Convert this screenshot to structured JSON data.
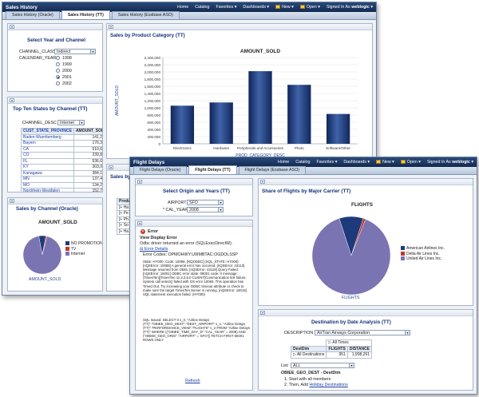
{
  "win1": {
    "app_title": "Sales History",
    "nav": [
      "Home",
      "Catalog",
      "Favorites",
      "Dashboards",
      "New",
      "Open",
      "Signed In As"
    ],
    "user": "weblogic",
    "tabs": [
      "Sales History (Oracle)",
      "Sales History (TT)",
      "Sales History (Essbase ASO)"
    ],
    "select_panel": {
      "title": "Select Year and Channel",
      "channel_class_label": "CHANNEL_CLASS",
      "channel_class_value": "Indirect",
      "calendar_year_label": "CALENDAR_YEAR",
      "years": [
        "1998",
        "1999",
        "2000",
        "2001",
        "2002"
      ],
      "selected_year": "2001"
    },
    "top_states": {
      "title": "Top Ten States by Channel (TT)",
      "channel_desc_label": "CHANNEL_DESC",
      "channel_desc_value": "Internet",
      "columns": [
        "CUST_STATE_PROVINCE",
        "AMOUNT_SOLD"
      ],
      "rows": [
        [
          "Baden-Wuerttemberg",
          "141,204"
        ],
        [
          "Bayern",
          "176,330"
        ],
        [
          "CA",
          "510,665"
        ],
        [
          "CO",
          "239,836"
        ],
        [
          "FL",
          "536,629"
        ],
        [
          "KY",
          "303,089"
        ],
        [
          "Kanagawa",
          "384,122"
        ],
        [
          "MN",
          "137,460"
        ],
        [
          "MO",
          "134,212"
        ],
        [
          "Nordrhein-Westfalen",
          "152,750"
        ]
      ]
    },
    "channel_pie": {
      "title": "Sales by Channel (Oracle)",
      "chart_title": "AMOUNT_SOLD",
      "legend": [
        "NO PROMOTION...",
        "TV",
        "Internet"
      ],
      "legend_colors": [
        "#1f3a7a",
        "#c0392b",
        "#7a74b3"
      ],
      "caption": "AMOUNT_SOLD"
    },
    "category_chart": {
      "title": "Sales by Product Category (TT)",
      "chart_title": "AMOUNT_SOLD",
      "ylabel": "AMOUNT_SOLD",
      "xlabel": "PROD_CATEGORY_DESC",
      "y_ticks": [
        "0",
        "200,000",
        "400,000",
        "600,000",
        "800,000",
        "1,000,000",
        "1,200,000",
        "1,400,000",
        "1,600,000",
        "1,800,000",
        "2,000,000",
        "2,200,000",
        "2,400,000"
      ]
    },
    "sales_by_p": {
      "title": "Sales by P",
      "col": "Product",
      "rows": [
        "[+ Ha",
        "[+ Pe",
        "[+ Ph",
        "[+ So",
        "[+ Ha"
      ]
    }
  },
  "win2": {
    "app_title": "Flight Delays",
    "nav": [
      "Home",
      "Catalog",
      "Favorites",
      "Dashboards",
      "New",
      "Open",
      "Signed In As"
    ],
    "user": "weblogic",
    "tabs": [
      "Flight Delays (Oracle)",
      "Flight Delays (TT)",
      "Flight Delays (Essbase ASO)"
    ],
    "select_panel": {
      "title": "Select Origin and Years (TT)",
      "airport_label": "AIRPORT",
      "airport_value": "SFO",
      "year_label": "* CAL_YEAR",
      "year_value": "2008"
    },
    "error_panel": {
      "heading": "Error",
      "view_display": "View Display Error",
      "summary": "Odbc driver returned an error (SQLExecDirectW).",
      "details_link": "Error Details",
      "codes": "Error Codes: OPMOHWY:U9IMBTAC:OGDOLSSP",
      "state_text": "State: HY000. Code: 10058. [NQODBC] [SQL_STATE: HY000] [nQSError: 10058] A general error has occurred. [nQSError: 43113] Message returned from OBIS. [nQSError: 43119] Query Failed: [nQSError: 16001] ODBC error state: 08001 code: 0 message: [TimesTen][TimesTen 11.2.2.5.0 CLIENT]Communication link failure. System call select() failed with OS error 10060. This operation has Timed Out. Try increasing your ODBC timeout attribute or check to make sure the target TimesTen Server is running. [nQSError: 16015] SQL statement execution failed. (HY000)",
      "sql_text": "SQL Issued: SELECT 0 s_0, \"Airline Delays (TT)\".\"OBIEE_GEO_DEST\".\"DEST_AIRPORT\" s_1, \"Airline Delays (TT)\".\"PERFORMANCE_VIEW\".\"FLIGHTS\" s_2 FROM \"Airline Delays (TT)\" WHERE ((\"OBIEE_TIME_DAY_D\".\"CAL_YEAR\" = 2008) AND (\"OBIEE_GEO_ORIG\".\"AIRPORT\" = 'SFO')) FETCH FIRST 65001 ROWS ONLY",
      "refresh": "Refresh"
    },
    "share_chart": {
      "title": "Share of Flights by Major Carrier (TT)",
      "chart_title": "FLIGHTS",
      "legend": [
        "American Airlines Inc.",
        "Delta Air Lines Inc.",
        "United Air Lines Inc."
      ],
      "legend_colors": [
        "#1f3a7a",
        "#c0392b",
        "#7a74b3"
      ],
      "caption": "FLIGHTS"
    },
    "destination": {
      "title": "Destination by Date Analysis (TT)",
      "description_label": "DESCRIPTION",
      "description_value": "AirTran Airways Corporation",
      "all_times": "All Times",
      "row_header": "DestDim",
      "cols": [
        "FLIGHTS",
        "DISTANCE"
      ],
      "row_label": "All Destinations",
      "flights": "951",
      "distance": "1,998,261",
      "list_label": "List:",
      "list_value": "ALL",
      "dest_heading": "OBIEE_GEO_DEST - DestDim",
      "steps": [
        "1. Start with all members",
        "2. Then, Add"
      ],
      "holiday_link": "Holiday Destinations"
    }
  },
  "chart_data": [
    {
      "type": "bar",
      "title": "AMOUNT_SOLD",
      "xlabel": "PROD_CATEGORY_DESC",
      "ylabel": "AMOUNT_SOLD",
      "categories": [
        "Electronics",
        "Hardware",
        "Peripherals and Accessories",
        "Photo",
        "Software/Other"
      ],
      "values": [
        1060000,
        1150000,
        2020000,
        1640000,
        830000
      ],
      "ylim": [
        0,
        2400000
      ],
      "grid": true
    },
    {
      "type": "pie",
      "title": "AMOUNT_SOLD",
      "categories": [
        "NO PROMOTION...",
        "TV",
        "Internet"
      ],
      "values": [
        0.06,
        0.01,
        0.93
      ]
    },
    {
      "type": "pie",
      "title": "FLIGHTS",
      "categories": [
        "American Airlines Inc.",
        "Delta Air Lines Inc.",
        "United Air Lines Inc."
      ],
      "values": [
        0.1,
        0.01,
        0.89
      ]
    }
  ]
}
